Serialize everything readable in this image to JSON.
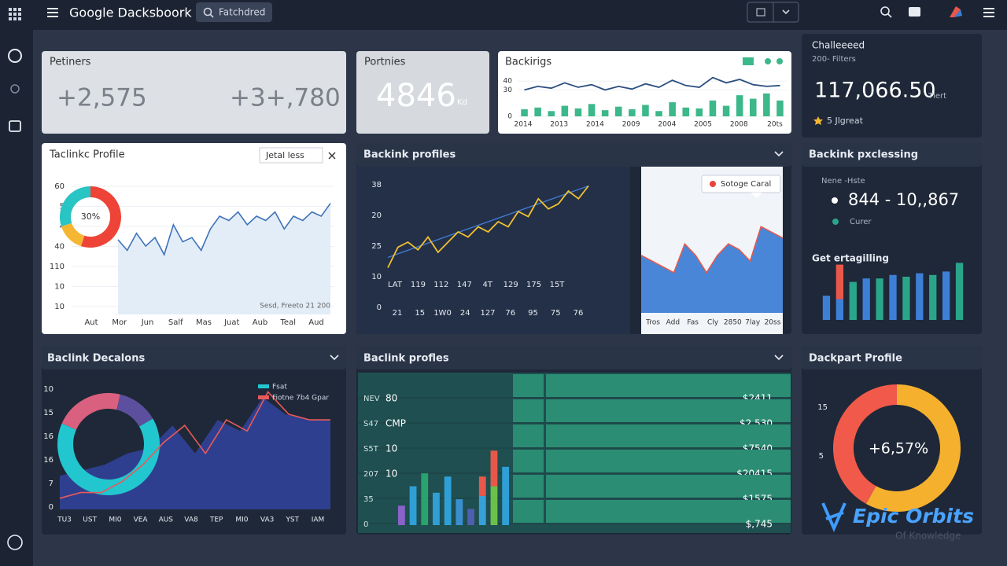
{
  "header": {
    "title": "Google Dacksboork",
    "search": "Fatchdred"
  },
  "kpi1": {
    "title": "Petiners",
    "values": [
      "+2,575",
      "+3+,780"
    ]
  },
  "kpi2": {
    "title": "Portnies",
    "value": "4846",
    "unit": "Kd"
  },
  "backlinks": {
    "title": "Backirigs",
    "ylim": [
      0,
      50
    ],
    "yticks": [
      0,
      30,
      40
    ],
    "xlabels": [
      "2014",
      "2013",
      "2014",
      "2009",
      "2004",
      "2005",
      "2008",
      "20ts"
    ],
    "line": [
      30,
      34,
      32,
      38,
      33,
      36,
      30,
      34,
      31,
      37,
      33,
      41,
      35,
      33,
      44,
      38,
      42,
      36,
      34,
      35
    ],
    "line_color": "#2d4f80",
    "bars": [
      8,
      10,
      6,
      12,
      9,
      14,
      7,
      11,
      8,
      13,
      6,
      16,
      10,
      9,
      18,
      12,
      24,
      20,
      26,
      18
    ],
    "bar_color": "#3cb88a"
  },
  "challenge": {
    "title": "Challeeeed",
    "subtitle": "200- Filters",
    "value": "117,066.50",
    "unit": "Tlert",
    "rating": "5 Jlgreat"
  },
  "profile": {
    "title": "Taclinkc Profile",
    "filter": "Jetal less",
    "donut": {
      "label": "30%",
      "segments": [
        {
          "value": 55,
          "color": "#ee4438"
        },
        {
          "value": 15,
          "color": "#f5b731"
        },
        {
          "value": 30,
          "color": "#29c4c4"
        }
      ]
    },
    "ylabels": [
      "60",
      "5",
      "4",
      "40",
      "110",
      "10",
      "10"
    ],
    "xlabels": [
      "Aut",
      "Mor",
      "Jun",
      "Salf",
      "Mas",
      "Juat",
      "Aub",
      "Teal",
      "Aud"
    ],
    "note": "Sesd, Freeto 21 200",
    "ylim": [
      0,
      60
    ],
    "line": [
      35,
      30,
      38,
      32,
      36,
      28,
      42,
      34,
      36,
      30,
      40,
      46,
      44,
      48,
      42,
      46,
      44,
      48,
      40,
      46,
      44,
      48,
      46,
      52
    ],
    "line_color": "#3f73b8"
  },
  "profiles": {
    "title": "Backink profiles",
    "ylabels": [
      "38",
      "20",
      "25",
      "10",
      "0"
    ],
    "row_labels": [
      "LAT",
      "119",
      "112",
      "147",
      "4T",
      "129",
      "175",
      "15T"
    ],
    "xlabels": [
      "21",
      "15",
      "1W0",
      "24",
      "127",
      "76",
      "95",
      "75",
      "76"
    ],
    "ylim": [
      0,
      40
    ],
    "line": [
      6,
      14,
      16,
      13,
      18,
      12,
      16,
      20,
      18,
      22,
      20,
      24,
      22,
      28,
      26,
      33,
      29,
      31,
      36,
      33,
      38
    ],
    "line_color": "#f2c230",
    "trend": [
      10,
      38
    ],
    "trend_color": "#3f7ad0",
    "tooltip": "Sotoge Caral",
    "area_ylim": [
      0,
      50
    ],
    "area": [
      20,
      18,
      16,
      14,
      24,
      20,
      14,
      20,
      24,
      22,
      18,
      30,
      28,
      26
    ],
    "area_color": "#4a86d8",
    "area_xlabels": [
      "Tros",
      "Add",
      "Fas",
      "Cly",
      "2850",
      "7lay",
      "20ss"
    ]
  },
  "processing": {
    "title": "Backink pxclessing",
    "label": "Nene -Hste",
    "value": "844 - 10,,867",
    "legend": "Curer",
    "subtitle": "Get ertagilling",
    "ylim": [
      0,
      35
    ],
    "bars": [
      {
        "values": [
          14
        ],
        "colors": [
          "#3d7fd6"
        ]
      },
      {
        "values": [
          12,
          20
        ],
        "colors": [
          "#3d7fd6",
          "#e8584a"
        ]
      },
      {
        "values": [
          22
        ],
        "colors": [
          "#2aa58a"
        ]
      },
      {
        "values": [
          24
        ],
        "colors": [
          "#3d7fd6"
        ]
      },
      {
        "values": [
          24
        ],
        "colors": [
          "#2aa58a"
        ]
      },
      {
        "values": [
          26
        ],
        "colors": [
          "#3d7fd6"
        ]
      },
      {
        "values": [
          25
        ],
        "colors": [
          "#2aa58a"
        ]
      },
      {
        "values": [
          27
        ],
        "colors": [
          "#3d7fd6"
        ]
      },
      {
        "values": [
          26
        ],
        "colors": [
          "#2aa58a"
        ]
      },
      {
        "values": [
          28
        ],
        "colors": [
          "#3d7fd6"
        ]
      },
      {
        "values": [
          33
        ],
        "colors": [
          "#2aa58a"
        ]
      }
    ]
  },
  "decalons": {
    "title": "Baclink Decalons",
    "legend": [
      {
        "name": "Fsat",
        "color": "#22c6cf"
      },
      {
        "name": "Fiotne 7b4 Gpar",
        "color": "#e85a5a"
      }
    ],
    "ylabels": [
      "10",
      "15",
      "16",
      "16",
      "7",
      "0"
    ],
    "xlabels": [
      "TU3",
      "UST",
      "MI0",
      "VEA",
      "AUS",
      "VA8",
      "TEP",
      "MI0",
      "VA3",
      "YST",
      "IAM"
    ],
    "ylim": [
      0,
      25
    ],
    "area": [
      6,
      7,
      8,
      10,
      11,
      15,
      10,
      16,
      14,
      20,
      17,
      16,
      16
    ],
    "area_color": "#2f3f8f",
    "line": [
      2,
      3,
      3,
      5,
      8,
      12,
      15,
      10,
      16,
      14,
      21,
      17,
      16,
      16
    ],
    "donut": {
      "segments": [
        {
          "value": 65,
          "color": "#22c6cf"
        },
        {
          "value": 22,
          "color": "#d9607e"
        },
        {
          "value": 13,
          "color": "#5b4f9e"
        }
      ]
    }
  },
  "table": {
    "title": "Baclink profles",
    "rows": [
      {
        "label": "NEV",
        "sub": "80",
        "value": "$2411"
      },
      {
        "label": "S47",
        "sub": "CMP",
        "value": "$2,530"
      },
      {
        "label": "S5T",
        "sub": "10",
        "value": "$7540"
      },
      {
        "label": "207",
        "sub": "10",
        "value": "$20415"
      },
      {
        "label": "35",
        "value": "$1575"
      },
      {
        "label": "0",
        "value": "$,745"
      }
    ],
    "ylim": [
      0,
      50
    ],
    "bars": [
      {
        "values": [
          12
        ],
        "colors": [
          "#8a63c9"
        ]
      },
      {
        "values": [
          24
        ],
        "colors": [
          "#2f9fd6"
        ]
      },
      {
        "values": [
          32
        ],
        "colors": [
          "#2aa36e"
        ]
      },
      {
        "values": [
          20
        ],
        "colors": [
          "#2f9fd6"
        ]
      },
      {
        "values": [
          30
        ],
        "colors": [
          "#2f9fd6"
        ]
      },
      {
        "values": [
          16
        ],
        "colors": [
          "#3a8fd0"
        ]
      },
      {
        "values": [
          10
        ],
        "colors": [
          "#4f5fb0"
        ]
      },
      {
        "values": [
          18,
          12
        ],
        "colors": [
          "#38a0d8",
          "#e8584a"
        ]
      },
      {
        "values": [
          24,
          22
        ],
        "colors": [
          "#6ac04a",
          "#e8584a"
        ]
      },
      {
        "values": [
          36
        ],
        "colors": [
          "#2f9fd6"
        ]
      }
    ]
  },
  "dackpart": {
    "title": "Dackpart Profile",
    "ylabels": [
      "15",
      "5"
    ],
    "donut": {
      "label": "+6,57%",
      "segments": [
        {
          "value": 58,
          "color": "#f5b12e"
        },
        {
          "value": 42,
          "color": "#f15a4a"
        }
      ]
    }
  },
  "watermark": {
    "title": "Epic Orbits",
    "subtitle": "Of Knowledge"
  }
}
